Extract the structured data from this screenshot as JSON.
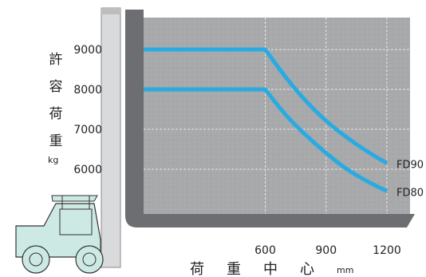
{
  "chart_data": {
    "type": "line",
    "title": "",
    "ylabel": "許容荷重",
    "ylabel_unit": "kg",
    "xlabel": "荷重中心",
    "xlabel_unit": "mm",
    "x_ticks": [
      600,
      900,
      1200
    ],
    "y_ticks": [
      6000,
      7000,
      8000,
      9000
    ],
    "xlim": [
      0,
      1200
    ],
    "ylim": [
      5000,
      10000
    ],
    "grid": true,
    "series": [
      {
        "name": "FD90",
        "color": "#29abe2",
        "points": [
          [
            0,
            9000
          ],
          [
            600,
            9000
          ],
          [
            700,
            8300
          ],
          [
            800,
            7700
          ],
          [
            900,
            7200
          ],
          [
            1000,
            6800
          ],
          [
            1100,
            6450
          ],
          [
            1200,
            6150
          ]
        ]
      },
      {
        "name": "FD80",
        "color": "#29abe2",
        "points": [
          [
            0,
            8000
          ],
          [
            600,
            8000
          ],
          [
            700,
            7350
          ],
          [
            800,
            6850
          ],
          [
            900,
            6400
          ],
          [
            1000,
            6000
          ],
          [
            1100,
            5700
          ],
          [
            1200,
            5450
          ]
        ]
      }
    ]
  },
  "colors": {
    "plot_bg": "#a9abad",
    "frame": "#6d6e71",
    "forklift_fill": "#cde9e3",
    "line": "#29abe2"
  }
}
